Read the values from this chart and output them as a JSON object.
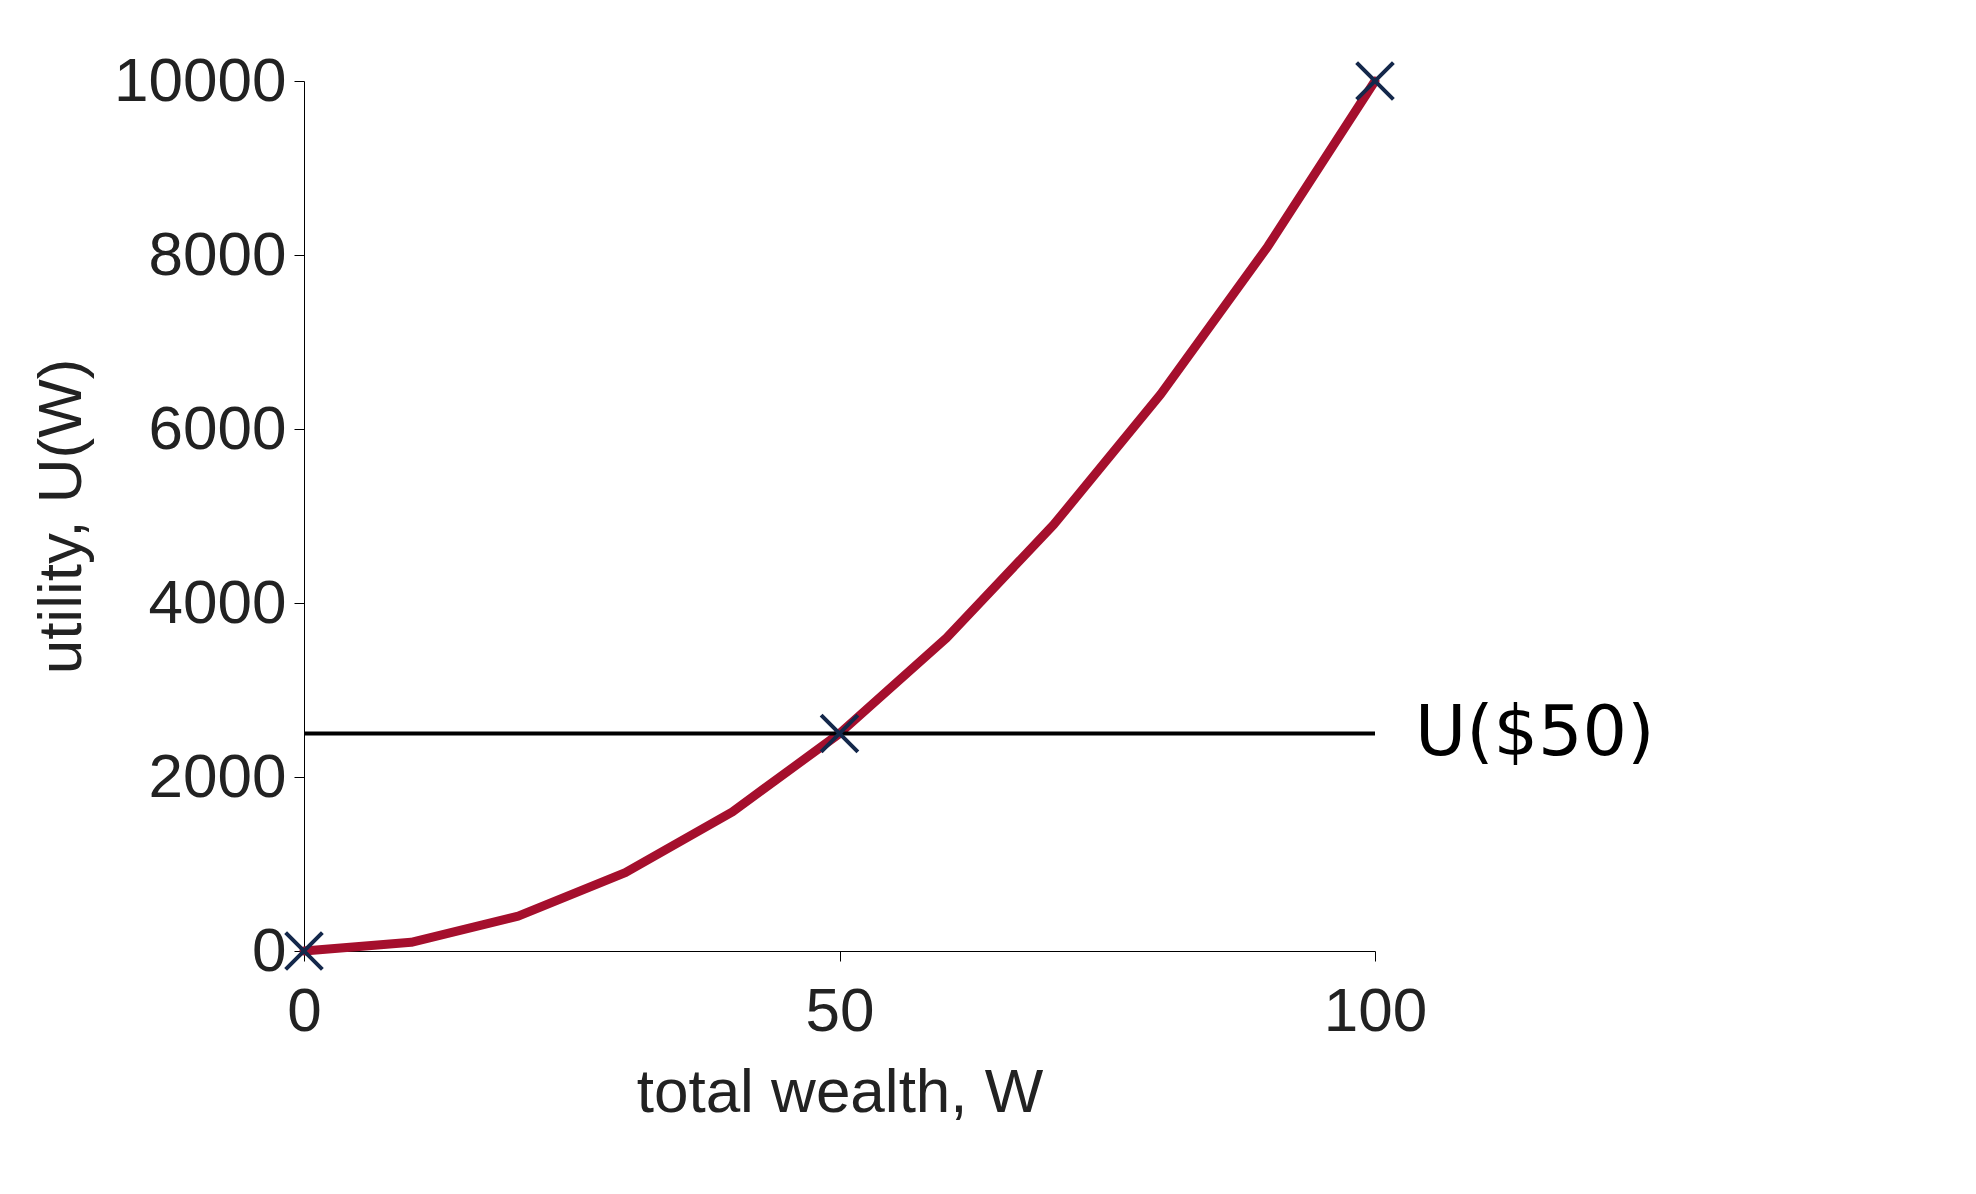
{
  "chart_data": {
    "type": "line",
    "xlabel": "total wealth, W",
    "ylabel": "utility, U(W)",
    "xlim": [
      0,
      100
    ],
    "xticks": [
      0,
      50,
      100
    ],
    "ylim": [
      0,
      10000
    ],
    "yticks": [
      0,
      2000,
      4000,
      6000,
      8000,
      10000
    ],
    "grid": false,
    "series": [
      {
        "color": "#a50f2d",
        "marker": "none",
        "x": [
          0,
          10,
          20,
          30,
          40,
          50,
          60,
          70,
          80,
          90,
          100
        ],
        "values": [
          0,
          100,
          400,
          900,
          1600,
          2500,
          3600,
          4900,
          6400,
          8100,
          10000
        ]
      },
      {
        "type": "scatter",
        "color": "#14284b",
        "marker": "cross",
        "x": [
          0,
          50,
          100
        ],
        "values": [
          0,
          2500,
          10000
        ]
      }
    ],
    "ref_lines": [
      {
        "axis": "y",
        "value": 2500,
        "label": "U($50)",
        "color": "#000000"
      }
    ]
  }
}
